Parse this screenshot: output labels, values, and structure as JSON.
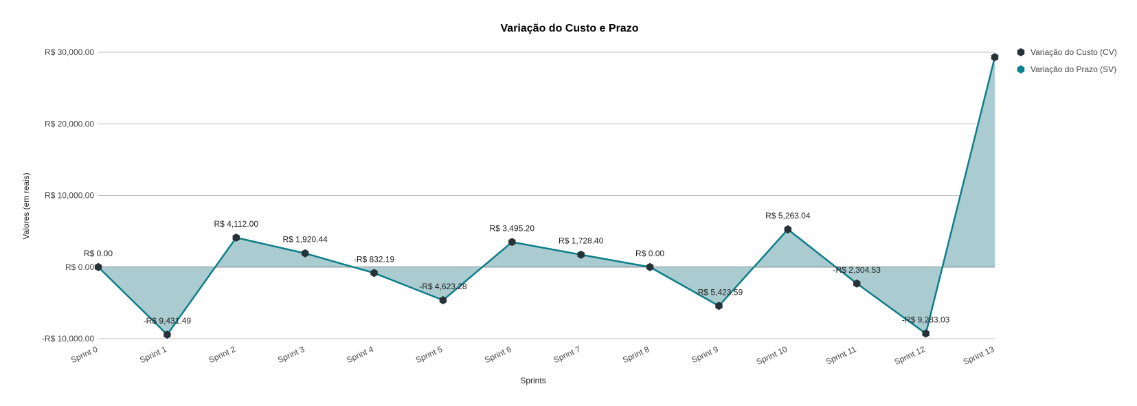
{
  "chart_data": {
    "type": "area",
    "title": "Variação do Custo e Prazo",
    "xlabel": "Sprints",
    "ylabel": "Valores (em reais)",
    "categories": [
      "Sprint 0",
      "Sprint 1",
      "Sprint 2",
      "Sprint 3",
      "Sprint 4",
      "Sprint 5",
      "Sprint 6",
      "Sprint 7",
      "Sprint 8",
      "Sprint 9",
      "Sprint 10",
      "Sprint 11",
      "Sprint 12",
      "Sprint 13"
    ],
    "ylim": [
      -10000,
      30000
    ],
    "yticks": [
      -10000,
      0,
      10000,
      20000,
      30000
    ],
    "ytick_labels": [
      "-R$ 10,000.00",
      "R$ 0.00",
      "R$ 10,000.00",
      "R$ 20,000.00",
      "R$ 30,000.00"
    ],
    "grid": true,
    "legend_position": "right",
    "series": [
      {
        "name": "Variação do Custo (CV)",
        "color": "#263238",
        "marker": "hexagon",
        "values": [
          0,
          -9431.49,
          4112.0,
          1920.44,
          -832.19,
          -4623.28,
          3495.2,
          1728.4,
          0,
          -5423.59,
          5263.04,
          -2304.53,
          -9283.03,
          29300
        ],
        "data_labels": [
          "R$ 0.00",
          "-R$ 9,431.49",
          "R$ 4,112.00",
          "R$ 1,920.44",
          "-R$ 832.19",
          "-R$ 4,623.28",
          "R$ 3,495.20",
          "R$ 1,728.40",
          "R$ 0.00",
          "-R$ 5,423.59",
          "R$ 5,263.04",
          "-R$ 2,304.53",
          "-R$ 9,283.03",
          ""
        ]
      },
      {
        "name": "Variação do Prazo (SV)",
        "color": "#00838f",
        "fill": "#aaccd0",
        "marker": "hexagon",
        "values": [
          0,
          -9431.49,
          4112.0,
          1920.44,
          -832.19,
          -4623.28,
          3495.2,
          1728.4,
          0,
          -5423.59,
          5263.04,
          -2304.53,
          -9283.03,
          29300
        ]
      }
    ]
  }
}
